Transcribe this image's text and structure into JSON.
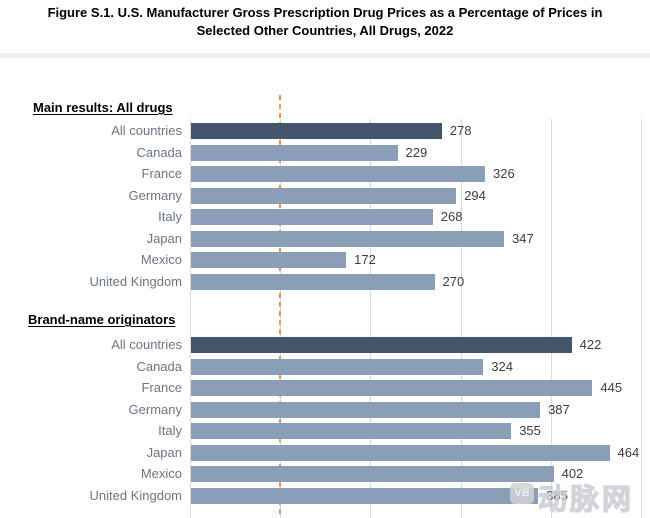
{
  "title": {
    "line1": "Figure S.1. U.S. Manufacturer Gross Prescription Drug Prices as a Percentage of Prices in",
    "line2": "Selected Other Countries, All Drugs, 2022"
  },
  "watermark": {
    "logo": "VB",
    "text": "动脉网"
  },
  "chart_data": {
    "type": "bar",
    "orientation": "horizontal",
    "title": "Figure S.1. U.S. Manufacturer Gross Prescription Drug Prices as a Percentage of Prices in Selected Other Countries, All Drugs, 2022",
    "unit": "percent of U.S. price = 100 baseline",
    "axis": {
      "min": 0,
      "max": 500,
      "gridline_values": [
        0,
        100,
        200,
        300,
        400,
        500
      ],
      "grid_color": "#d9d9d9",
      "tick_labels_visible": false
    },
    "reference_line": {
      "value": 100,
      "style": "dashed",
      "color": "#ed9453"
    },
    "colors": {
      "highlight_bar": "#44546a",
      "default_bar": "#8b9eb8",
      "category_label": "#6b7584",
      "value_label": "#3d3d3d"
    },
    "categories": [
      "All countries",
      "Canada",
      "France",
      "Germany",
      "Italy",
      "Japan",
      "Mexico",
      "United Kingdom"
    ],
    "groups": [
      {
        "heading": "Main results: All drugs",
        "highlight_index": 0,
        "values": [
          278,
          229,
          326,
          294,
          268,
          347,
          172,
          270
        ]
      },
      {
        "heading": "Brand-name originators",
        "highlight_index": 0,
        "values": [
          422,
          324,
          445,
          387,
          355,
          464,
          402,
          385
        ]
      }
    ]
  }
}
